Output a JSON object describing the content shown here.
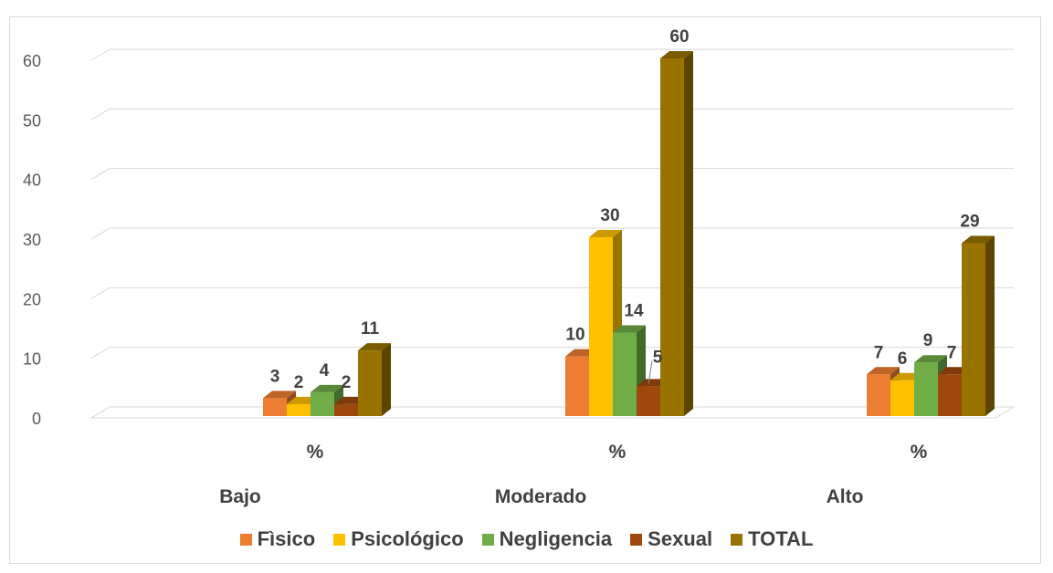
{
  "chart_data": {
    "type": "bar",
    "title": "",
    "xlabel": "",
    "ylabel": "",
    "ylim": [
      0,
      60
    ],
    "yticks": [
      "0",
      "10",
      "20",
      "30",
      "40",
      "50",
      "60"
    ],
    "grid": true,
    "legend_position": "bottom",
    "categories": [
      "%",
      "%",
      "%"
    ],
    "category_groups": [
      "Bajo",
      "Moderado",
      "Alto"
    ],
    "series": [
      {
        "name": "Fìsico",
        "color": "#ED7D31",
        "values": [
          3,
          10,
          7
        ]
      },
      {
        "name": "Psicológico",
        "color": "#FFC000",
        "values": [
          2,
          30,
          6
        ]
      },
      {
        "name": "Negligencia",
        "color": "#70AD47",
        "values": [
          4,
          14,
          9
        ]
      },
      {
        "name": "Sexual",
        "color": "#9E480E",
        "values": [
          2,
          5,
          7
        ]
      },
      {
        "name": "TOTAL",
        "color": "#997300",
        "values": [
          11,
          60,
          29
        ]
      }
    ]
  }
}
